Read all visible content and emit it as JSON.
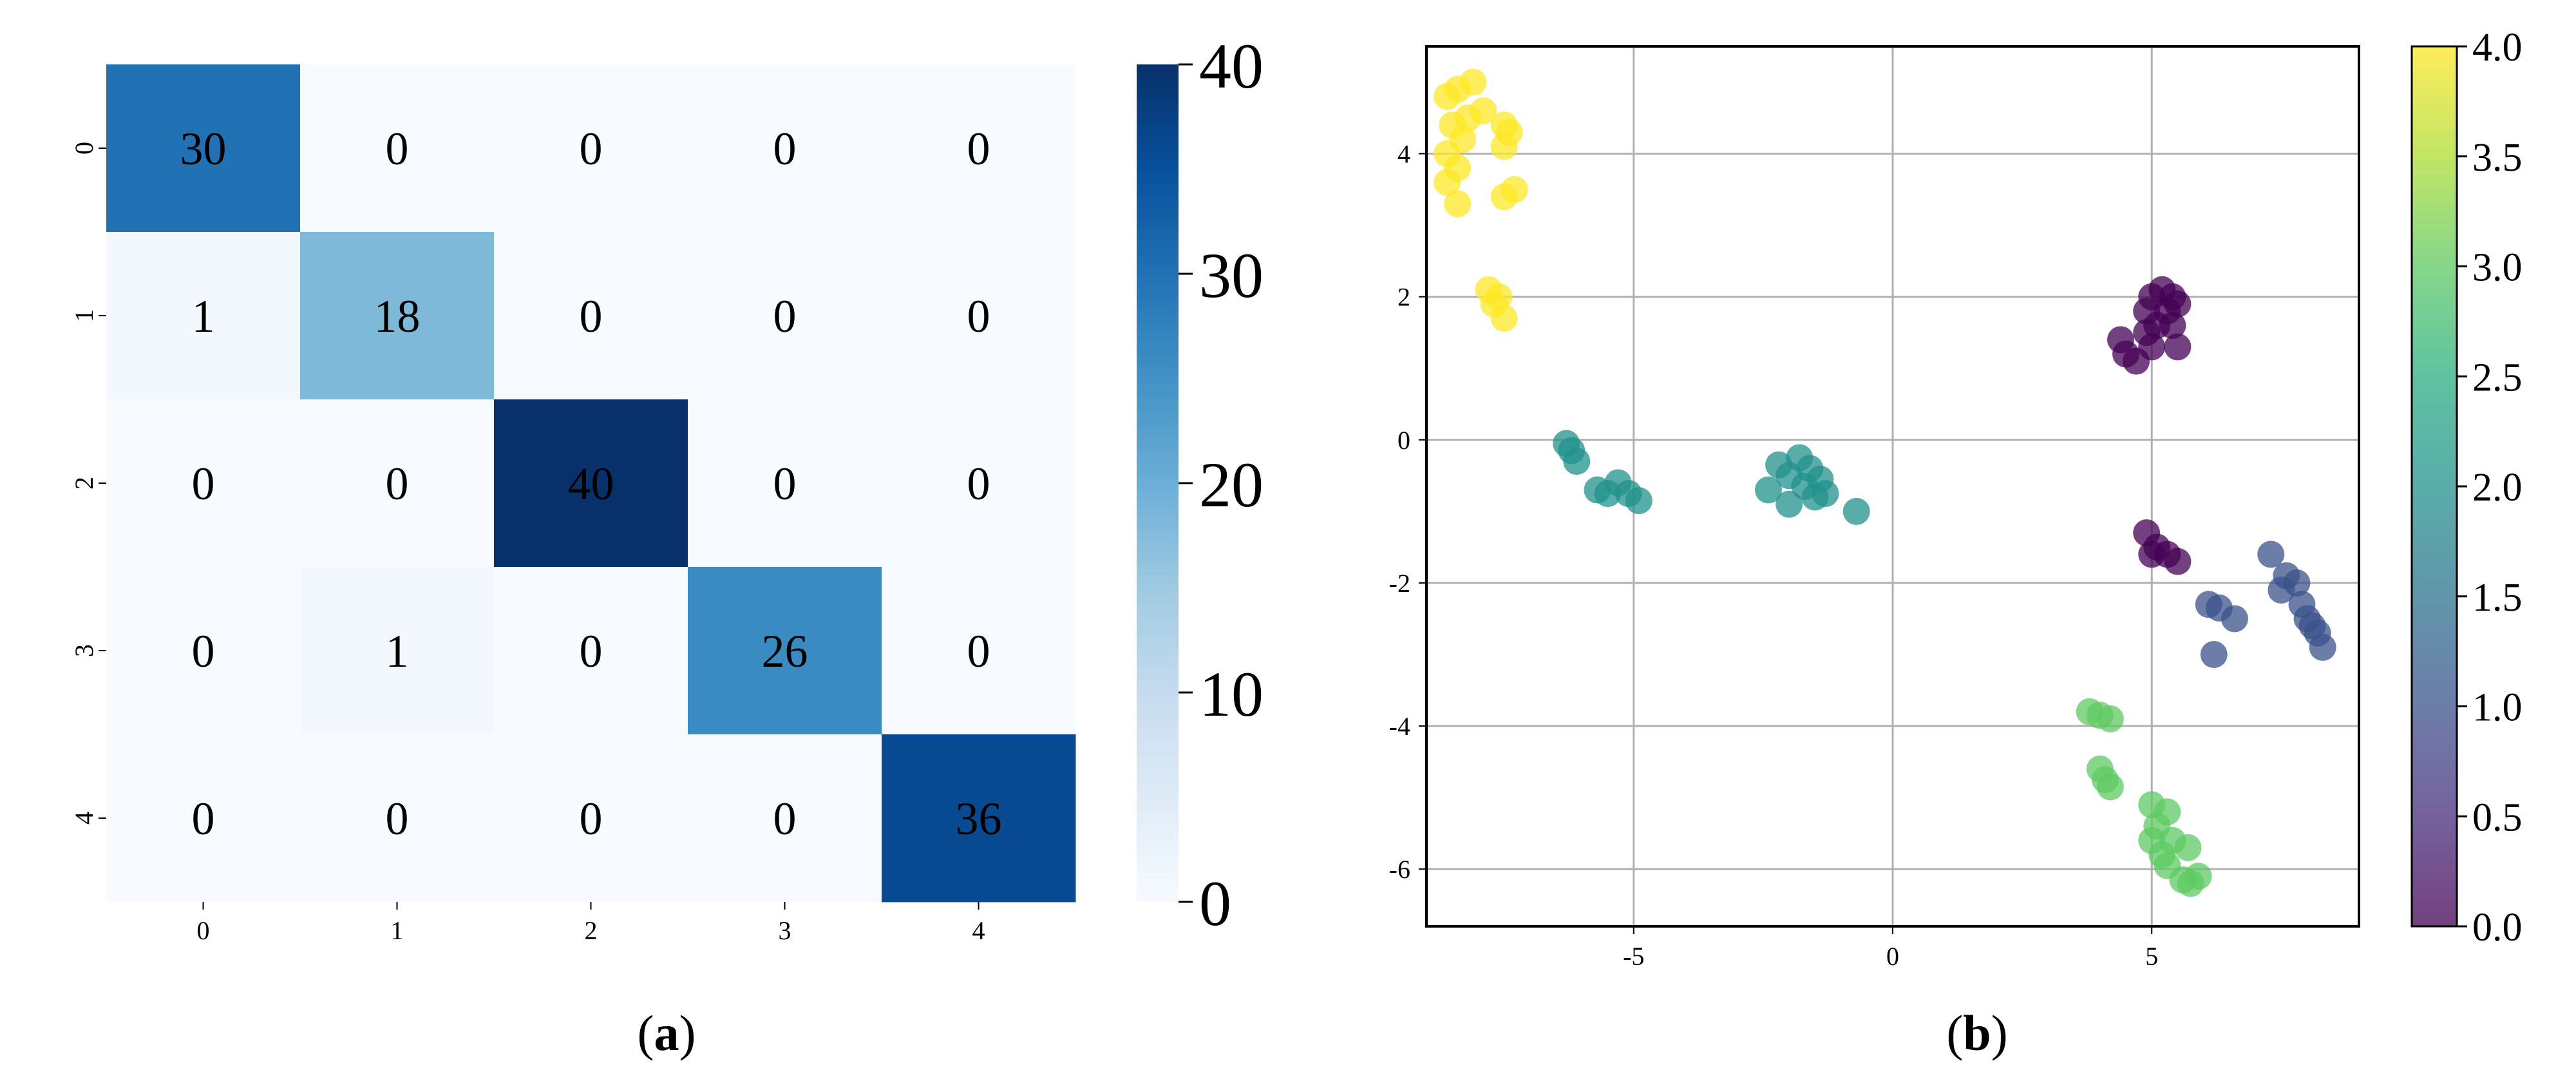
{
  "chart_data": [
    {
      "type": "heatmap",
      "panel_label": "a",
      "row_labels": [
        "0",
        "1",
        "2",
        "3",
        "4"
      ],
      "col_labels": [
        "0",
        "1",
        "2",
        "3",
        "4"
      ],
      "values": [
        [
          30,
          0,
          0,
          0,
          0
        ],
        [
          1,
          18,
          0,
          0,
          0
        ],
        [
          0,
          0,
          40,
          0,
          0
        ],
        [
          0,
          1,
          0,
          26,
          0
        ],
        [
          0,
          0,
          0,
          0,
          36
        ]
      ],
      "colorbar": {
        "min": 0,
        "max": 40,
        "ticks": [
          "0",
          "10",
          "20",
          "30",
          "40"
        ],
        "colormap": "Blues"
      },
      "colors": {
        "low": "#f7fbff",
        "high": "#08306b"
      }
    },
    {
      "type": "scatter",
      "panel_label": "b",
      "xlim": [
        -9.0,
        9.0
      ],
      "ylim": [
        -6.8,
        5.5
      ],
      "xticks": [
        "-5",
        "0",
        "5"
      ],
      "yticks": [
        "-6",
        "-4",
        "-2",
        "0",
        "2",
        "4"
      ],
      "grid": true,
      "colorbar": {
        "min": 0.0,
        "max": 4.0,
        "ticks": [
          "0.0",
          "0.5",
          "1.0",
          "1.5",
          "2.0",
          "2.5",
          "3.0",
          "3.5",
          "4.0"
        ],
        "colormap": "viridis"
      },
      "points": [
        {
          "x": -8.4,
          "y": 4.9,
          "c": 4
        },
        {
          "x": -8.1,
          "y": 5.0,
          "c": 4
        },
        {
          "x": -8.6,
          "y": 4.8,
          "c": 4
        },
        {
          "x": -8.2,
          "y": 4.5,
          "c": 4
        },
        {
          "x": -8.5,
          "y": 4.4,
          "c": 4
        },
        {
          "x": -7.9,
          "y": 4.6,
          "c": 4
        },
        {
          "x": -8.3,
          "y": 4.2,
          "c": 4
        },
        {
          "x": -8.6,
          "y": 4.0,
          "c": 4
        },
        {
          "x": -8.4,
          "y": 3.8,
          "c": 4
        },
        {
          "x": -8.6,
          "y": 3.6,
          "c": 4
        },
        {
          "x": -8.4,
          "y": 3.3,
          "c": 4
        },
        {
          "x": -7.5,
          "y": 4.4,
          "c": 4
        },
        {
          "x": -7.4,
          "y": 4.3,
          "c": 4
        },
        {
          "x": -7.5,
          "y": 4.1,
          "c": 4
        },
        {
          "x": -7.3,
          "y": 3.5,
          "c": 4
        },
        {
          "x": -7.5,
          "y": 3.4,
          "c": 4
        },
        {
          "x": -7.8,
          "y": 2.1,
          "c": 4
        },
        {
          "x": -7.6,
          "y": 2.0,
          "c": 4
        },
        {
          "x": -7.7,
          "y": 1.9,
          "c": 4
        },
        {
          "x": -7.5,
          "y": 1.7,
          "c": 4
        },
        {
          "x": 5.0,
          "y": 2.0,
          "c": 0
        },
        {
          "x": 5.2,
          "y": 2.1,
          "c": 0
        },
        {
          "x": 5.4,
          "y": 2.0,
          "c": 0
        },
        {
          "x": 4.9,
          "y": 1.8,
          "c": 0
        },
        {
          "x": 5.3,
          "y": 1.8,
          "c": 0
        },
        {
          "x": 5.5,
          "y": 1.9,
          "c": 0
        },
        {
          "x": 5.1,
          "y": 1.6,
          "c": 0
        },
        {
          "x": 5.4,
          "y": 1.6,
          "c": 0
        },
        {
          "x": 5.5,
          "y": 1.3,
          "c": 0
        },
        {
          "x": 4.4,
          "y": 1.4,
          "c": 0
        },
        {
          "x": 4.5,
          "y": 1.2,
          "c": 0
        },
        {
          "x": 4.7,
          "y": 1.1,
          "c": 0
        },
        {
          "x": 4.9,
          "y": 1.5,
          "c": 0
        },
        {
          "x": 5.0,
          "y": 1.3,
          "c": 0
        },
        {
          "x": 4.9,
          "y": -1.3,
          "c": 0
        },
        {
          "x": 5.1,
          "y": -1.5,
          "c": 0
        },
        {
          "x": 5.0,
          "y": -1.6,
          "c": 0
        },
        {
          "x": 5.3,
          "y": -1.6,
          "c": 0
        },
        {
          "x": 5.5,
          "y": -1.7,
          "c": 0
        },
        {
          "x": -6.3,
          "y": -0.05,
          "c": 2
        },
        {
          "x": -6.2,
          "y": -0.15,
          "c": 2
        },
        {
          "x": -6.1,
          "y": -0.3,
          "c": 2
        },
        {
          "x": -5.7,
          "y": -0.7,
          "c": 2
        },
        {
          "x": -5.5,
          "y": -0.75,
          "c": 2
        },
        {
          "x": -5.3,
          "y": -0.6,
          "c": 2
        },
        {
          "x": -5.1,
          "y": -0.75,
          "c": 2
        },
        {
          "x": -4.9,
          "y": -0.85,
          "c": 2
        },
        {
          "x": -2.2,
          "y": -0.35,
          "c": 2
        },
        {
          "x": -1.8,
          "y": -0.25,
          "c": 2
        },
        {
          "x": -1.6,
          "y": -0.4,
          "c": 2
        },
        {
          "x": -1.4,
          "y": -0.55,
          "c": 2
        },
        {
          "x": -2.0,
          "y": -0.5,
          "c": 2
        },
        {
          "x": -1.7,
          "y": -0.65,
          "c": 2
        },
        {
          "x": -2.4,
          "y": -0.7,
          "c": 2
        },
        {
          "x": -2.0,
          "y": -0.9,
          "c": 2
        },
        {
          "x": -1.5,
          "y": -0.8,
          "c": 2
        },
        {
          "x": -1.3,
          "y": -0.75,
          "c": 2
        },
        {
          "x": -0.7,
          "y": -1.0,
          "c": 2
        },
        {
          "x": 7.3,
          "y": -1.6,
          "c": 1
        },
        {
          "x": 7.6,
          "y": -1.9,
          "c": 1
        },
        {
          "x": 7.8,
          "y": -2.0,
          "c": 1
        },
        {
          "x": 7.5,
          "y": -2.1,
          "c": 1
        },
        {
          "x": 7.9,
          "y": -2.3,
          "c": 1
        },
        {
          "x": 8.0,
          "y": -2.5,
          "c": 1
        },
        {
          "x": 8.1,
          "y": -2.6,
          "c": 1
        },
        {
          "x": 8.2,
          "y": -2.7,
          "c": 1
        },
        {
          "x": 8.3,
          "y": -2.9,
          "c": 1
        },
        {
          "x": 6.1,
          "y": -2.3,
          "c": 1
        },
        {
          "x": 6.3,
          "y": -2.35,
          "c": 1
        },
        {
          "x": 6.6,
          "y": -2.5,
          "c": 1
        },
        {
          "x": 6.2,
          "y": -3.0,
          "c": 1
        },
        {
          "x": 3.8,
          "y": -3.8,
          "c": 3
        },
        {
          "x": 4.0,
          "y": -3.85,
          "c": 3
        },
        {
          "x": 4.2,
          "y": -3.9,
          "c": 3
        },
        {
          "x": 4.0,
          "y": -4.6,
          "c": 3
        },
        {
          "x": 4.1,
          "y": -4.75,
          "c": 3
        },
        {
          "x": 4.2,
          "y": -4.85,
          "c": 3
        },
        {
          "x": 5.0,
          "y": -5.1,
          "c": 3
        },
        {
          "x": 5.3,
          "y": -5.2,
          "c": 3
        },
        {
          "x": 5.1,
          "y": -5.4,
          "c": 3
        },
        {
          "x": 5.0,
          "y": -5.6,
          "c": 3
        },
        {
          "x": 5.4,
          "y": -5.6,
          "c": 3
        },
        {
          "x": 5.2,
          "y": -5.8,
          "c": 3
        },
        {
          "x": 5.7,
          "y": -5.7,
          "c": 3
        },
        {
          "x": 5.3,
          "y": -5.95,
          "c": 3
        },
        {
          "x": 5.6,
          "y": -6.15,
          "c": 3
        },
        {
          "x": 5.9,
          "y": -6.1,
          "c": 3
        },
        {
          "x": 5.75,
          "y": -6.2,
          "c": 3
        }
      ]
    }
  ]
}
